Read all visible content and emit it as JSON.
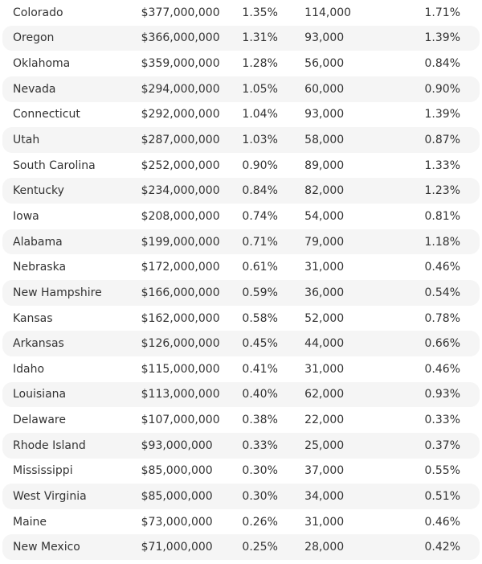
{
  "rows": [
    {
      "state": "Colorado",
      "amount": "$377,000,000",
      "share": "1.35%",
      "jobs": "114,000",
      "job_share": "1.71%"
    },
    {
      "state": "Oregon",
      "amount": "$366,000,000",
      "share": "1.31%",
      "jobs": "93,000",
      "job_share": "1.39%"
    },
    {
      "state": "Oklahoma",
      "amount": "$359,000,000",
      "share": "1.28%",
      "jobs": "56,000",
      "job_share": "0.84%"
    },
    {
      "state": "Nevada",
      "amount": "$294,000,000",
      "share": "1.05%",
      "jobs": "60,000",
      "job_share": "0.90%"
    },
    {
      "state": "Connecticut",
      "amount": "$292,000,000",
      "share": "1.04%",
      "jobs": "93,000",
      "job_share": "1.39%"
    },
    {
      "state": "Utah",
      "amount": "$287,000,000",
      "share": "1.03%",
      "jobs": "58,000",
      "job_share": "0.87%"
    },
    {
      "state": "South Carolina",
      "amount": "$252,000,000",
      "share": "0.90%",
      "jobs": "89,000",
      "job_share": "1.33%"
    },
    {
      "state": "Kentucky",
      "amount": "$234,000,000",
      "share": "0.84%",
      "jobs": "82,000",
      "job_share": "1.23%"
    },
    {
      "state": "Iowa",
      "amount": "$208,000,000",
      "share": "0.74%",
      "jobs": "54,000",
      "job_share": "0.81%"
    },
    {
      "state": "Alabama",
      "amount": "$199,000,000",
      "share": "0.71%",
      "jobs": "79,000",
      "job_share": "1.18%"
    },
    {
      "state": "Nebraska",
      "amount": "$172,000,000",
      "share": "0.61%",
      "jobs": "31,000",
      "job_share": "0.46%"
    },
    {
      "state": "New Hampshire",
      "amount": "$166,000,000",
      "share": "0.59%",
      "jobs": "36,000",
      "job_share": "0.54%"
    },
    {
      "state": "Kansas",
      "amount": "$162,000,000",
      "share": "0.58%",
      "jobs": "52,000",
      "job_share": "0.78%"
    },
    {
      "state": "Arkansas",
      "amount": "$126,000,000",
      "share": "0.45%",
      "jobs": "44,000",
      "job_share": "0.66%"
    },
    {
      "state": "Idaho",
      "amount": "$115,000,000",
      "share": "0.41%",
      "jobs": "31,000",
      "job_share": "0.46%"
    },
    {
      "state": "Louisiana",
      "amount": "$113,000,000",
      "share": "0.40%",
      "jobs": "62,000",
      "job_share": "0.93%"
    },
    {
      "state": "Delaware",
      "amount": "$107,000,000",
      "share": "0.38%",
      "jobs": "22,000",
      "job_share": "0.33%"
    },
    {
      "state": "Rhode Island",
      "amount": "$93,000,000",
      "share": "0.33%",
      "jobs": "25,000",
      "job_share": "0.37%"
    },
    {
      "state": "Mississippi",
      "amount": "$85,000,000",
      "share": "0.30%",
      "jobs": "37,000",
      "job_share": "0.55%"
    },
    {
      "state": "West Virginia",
      "amount": "$85,000,000",
      "share": "0.30%",
      "jobs": "34,000",
      "job_share": "0.51%"
    },
    {
      "state": "Maine",
      "amount": "$73,000,000",
      "share": "0.26%",
      "jobs": "31,000",
      "job_share": "0.46%"
    },
    {
      "state": "New Mexico",
      "amount": "$71,000,000",
      "share": "0.25%",
      "jobs": "28,000",
      "job_share": "0.42%"
    }
  ],
  "colors": {
    "stripe": "#f5f5f5",
    "text": "#333333",
    "background": "#ffffff"
  }
}
